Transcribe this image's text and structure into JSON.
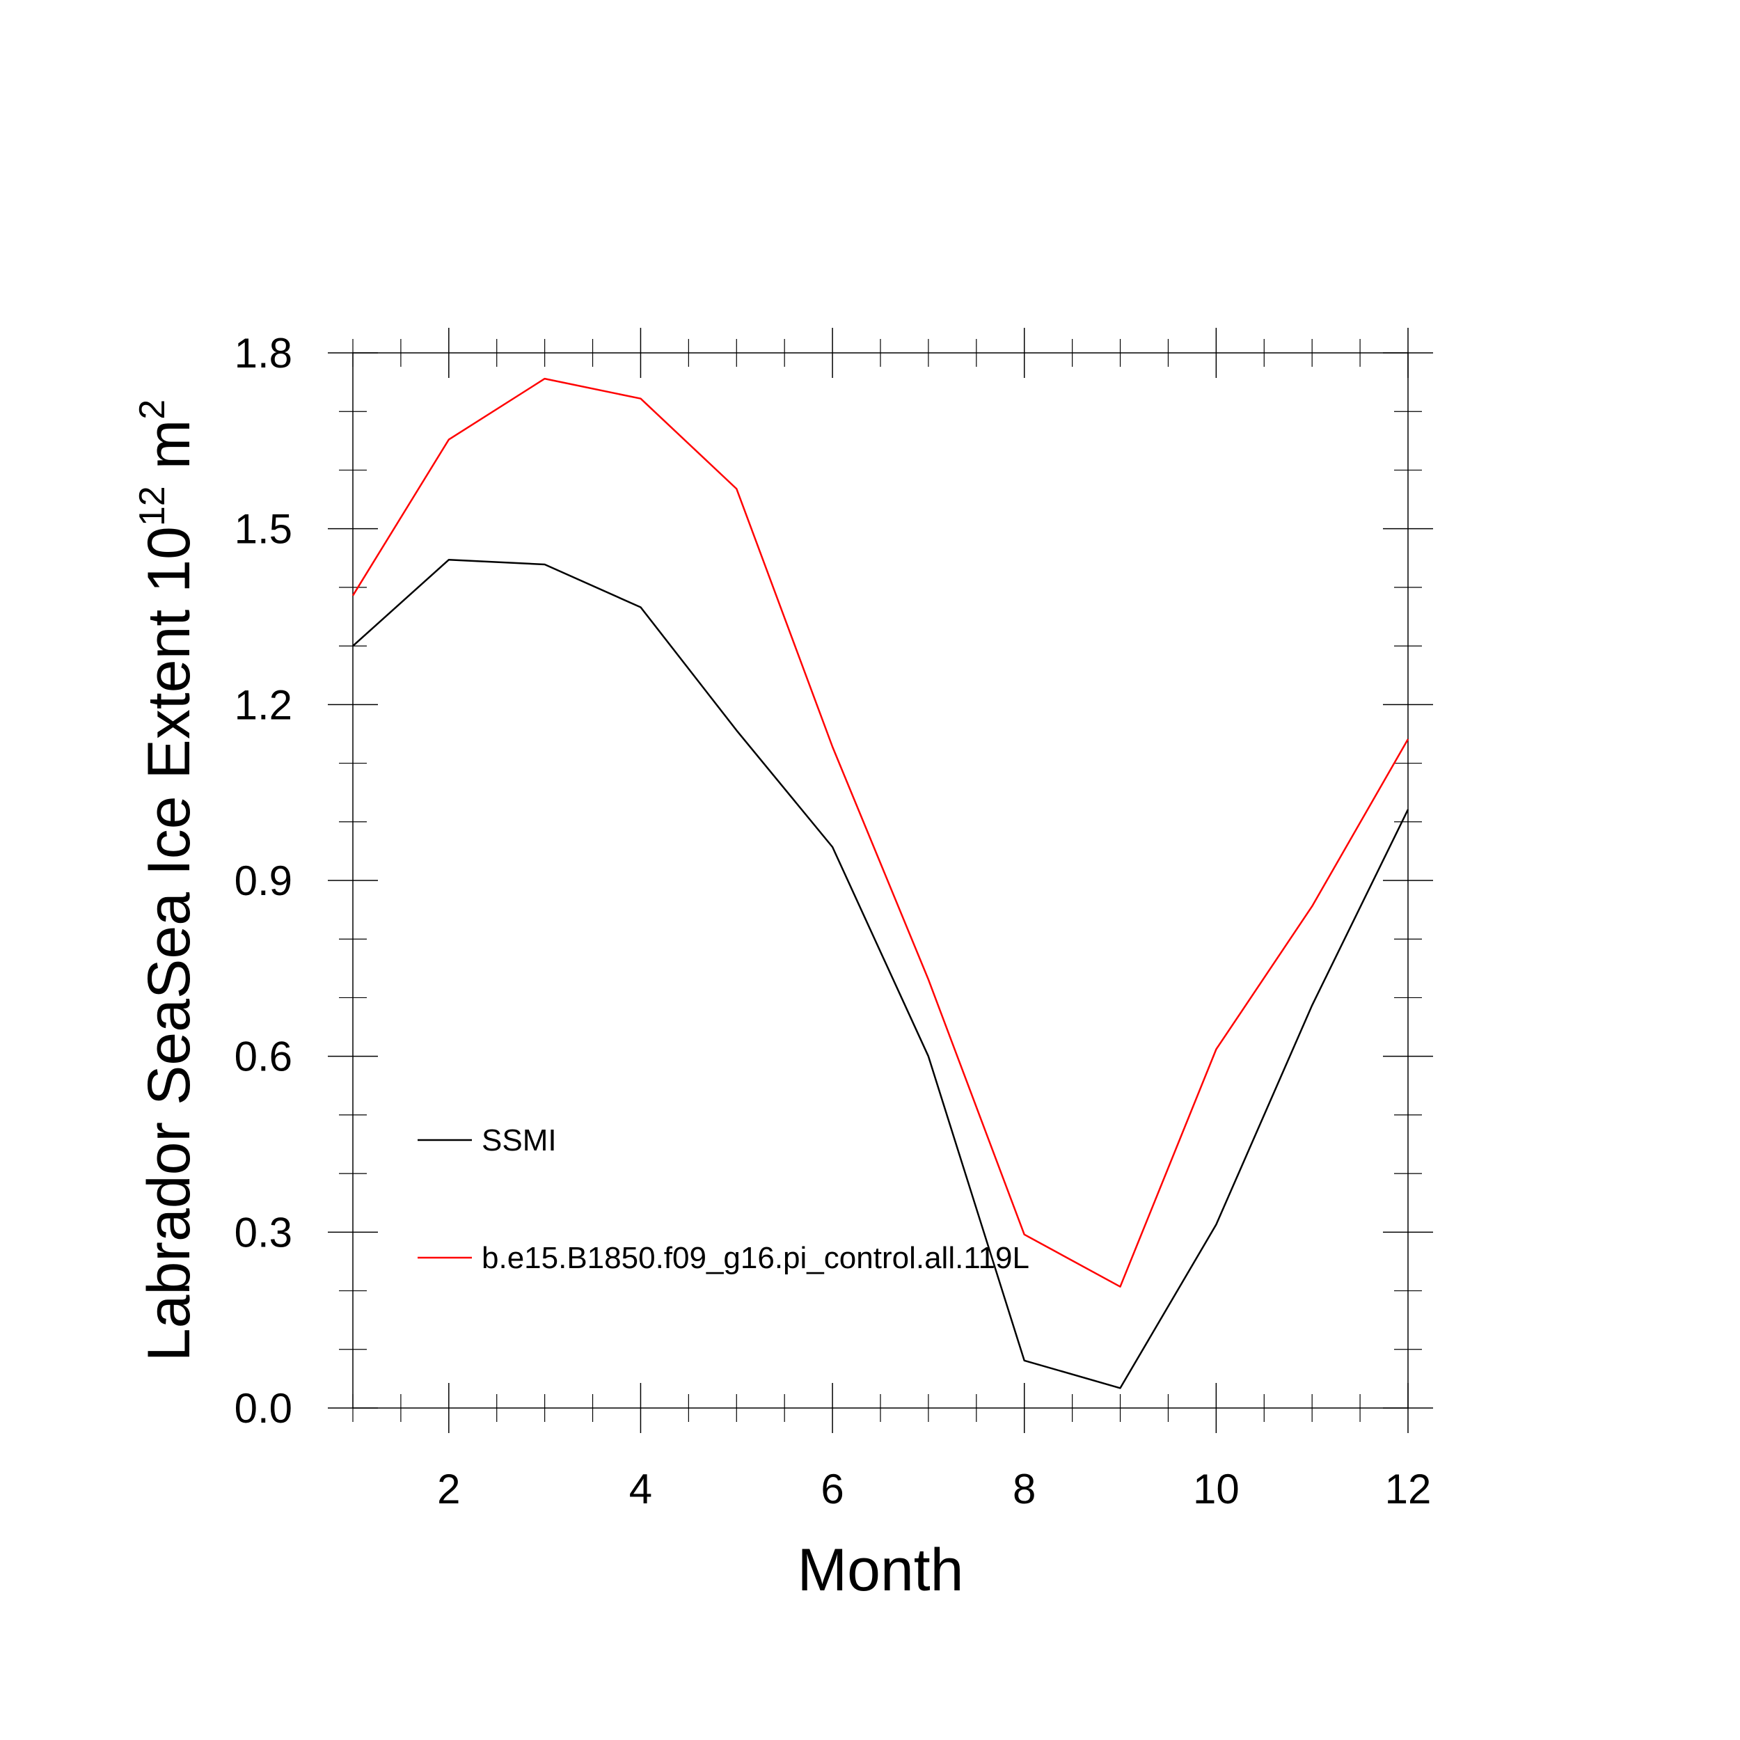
{
  "chart_data": {
    "type": "line",
    "title": "",
    "xlabel": "Month",
    "ylabel": {
      "main": "Labrador SeaSea Ice Extent 10",
      "superscript1": "12",
      "unit": " m",
      "superscript2": "2"
    },
    "xlim": [
      1,
      12
    ],
    "ylim": [
      0.0,
      1.8
    ],
    "xticks": [
      2,
      4,
      6,
      8,
      10,
      12
    ],
    "xtick_labels": [
      "2",
      "4",
      "6",
      "8",
      "10",
      "12"
    ],
    "yticks": [
      0.0,
      0.3,
      0.6,
      0.9,
      1.2,
      1.5,
      1.8
    ],
    "ytick_labels": [
      "0.0",
      "0.3",
      "0.6",
      "0.9",
      "1.2",
      "1.5",
      "1.8"
    ],
    "x": [
      1,
      2,
      3,
      4,
      5,
      6,
      7,
      8,
      9,
      10,
      11,
      12
    ],
    "series": [
      {
        "name": "SSMI",
        "color": "#000000",
        "values": [
          1.3,
          1.447,
          1.439,
          1.366,
          1.156,
          0.957,
          0.6,
          0.081,
          0.034,
          0.313,
          0.687,
          1.021
        ]
      },
      {
        "name": "b.e15.B1850.f09_g16.pi_control.all.119L",
        "color": "#ff0000",
        "values": [
          1.386,
          1.652,
          1.756,
          1.722,
          1.568,
          1.128,
          0.731,
          0.296,
          0.207,
          0.612,
          0.856,
          1.141
        ]
      }
    ],
    "grid": false,
    "legend_position": "bottom-left inside plot"
  }
}
